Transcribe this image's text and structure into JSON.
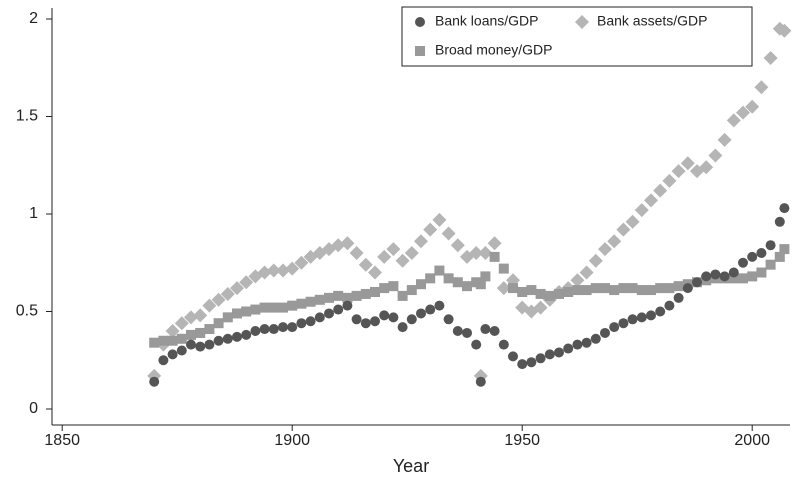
{
  "chart_data": {
    "type": "scatter",
    "xlabel": "Year",
    "x": [
      1870,
      1872,
      1874,
      1876,
      1878,
      1880,
      1882,
      1884,
      1886,
      1888,
      1890,
      1892,
      1894,
      1896,
      1898,
      1900,
      1902,
      1904,
      1906,
      1908,
      1910,
      1912,
      1914,
      1916,
      1918,
      1920,
      1922,
      1924,
      1926,
      1928,
      1930,
      1932,
      1934,
      1936,
      1938,
      1940,
      1941,
      1942,
      1944,
      1946,
      1948,
      1950,
      1952,
      1954,
      1956,
      1958,
      1960,
      1962,
      1964,
      1966,
      1968,
      1970,
      1972,
      1974,
      1976,
      1978,
      1980,
      1982,
      1984,
      1986,
      1988,
      1990,
      1992,
      1994,
      1996,
      1998,
      2000,
      2002,
      2004,
      2006,
      2007
    ],
    "series": [
      {
        "name": "Bank loans/GDP",
        "color": "#555555",
        "marker": "circle",
        "values": [
          0.14,
          0.25,
          0.28,
          0.3,
          0.33,
          0.32,
          0.33,
          0.35,
          0.36,
          0.37,
          0.38,
          0.4,
          0.41,
          0.41,
          0.42,
          0.42,
          0.44,
          0.45,
          0.47,
          0.49,
          0.51,
          0.53,
          0.46,
          0.44,
          0.45,
          0.48,
          0.47,
          0.42,
          0.46,
          0.49,
          0.51,
          0.53,
          0.46,
          0.4,
          0.39,
          0.33,
          0.14,
          0.41,
          0.4,
          0.33,
          0.27,
          0.23,
          0.24,
          0.26,
          0.28,
          0.29,
          0.31,
          0.33,
          0.34,
          0.36,
          0.39,
          0.42,
          0.44,
          0.46,
          0.47,
          0.48,
          0.5,
          0.53,
          0.57,
          0.62,
          0.65,
          0.68,
          0.69,
          0.68,
          0.7,
          0.75,
          0.78,
          0.8,
          0.84,
          0.96,
          1.03
        ]
      },
      {
        "name": "Bank assets/GDP",
        "color": "#b5b5b5",
        "marker": "diamond",
        "values": [
          0.17,
          0.33,
          0.4,
          0.44,
          0.47,
          0.48,
          0.53,
          0.56,
          0.59,
          0.62,
          0.65,
          0.68,
          0.7,
          0.71,
          0.71,
          0.72,
          0.75,
          0.78,
          0.8,
          0.82,
          0.84,
          0.85,
          0.8,
          0.74,
          0.7,
          0.78,
          0.82,
          0.76,
          0.8,
          0.86,
          0.92,
          0.97,
          0.9,
          0.84,
          0.78,
          0.8,
          0.17,
          0.8,
          0.85,
          0.62,
          0.66,
          0.52,
          0.5,
          0.52,
          0.56,
          0.6,
          0.62,
          0.66,
          0.7,
          0.76,
          0.82,
          0.86,
          0.92,
          0.96,
          1.02,
          1.07,
          1.12,
          1.17,
          1.22,
          1.26,
          1.22,
          1.24,
          1.3,
          1.38,
          1.48,
          1.52,
          1.55,
          1.65,
          1.8,
          1.95,
          1.94
        ]
      },
      {
        "name": "Broad money/GDP",
        "color": "#999999",
        "marker": "square",
        "values": [
          0.34,
          0.35,
          0.35,
          0.36,
          0.38,
          0.39,
          0.41,
          0.44,
          0.47,
          0.49,
          0.5,
          0.51,
          0.52,
          0.52,
          0.52,
          0.53,
          0.54,
          0.55,
          0.56,
          0.57,
          0.58,
          0.57,
          0.58,
          0.59,
          0.6,
          0.62,
          0.63,
          0.58,
          0.61,
          0.64,
          0.67,
          0.71,
          0.67,
          0.65,
          0.63,
          0.65,
          0.64,
          0.68,
          0.78,
          0.72,
          0.62,
          0.6,
          0.61,
          0.59,
          0.58,
          0.59,
          0.6,
          0.61,
          0.61,
          0.62,
          0.62,
          0.61,
          0.62,
          0.62,
          0.61,
          0.61,
          0.62,
          0.62,
          0.63,
          0.64,
          0.65,
          0.66,
          0.67,
          0.67,
          0.67,
          0.67,
          0.68,
          0.7,
          0.74,
          0.78,
          0.82
        ]
      }
    ],
    "xlim": [
      1848,
      2008
    ],
    "xticks": [
      1850,
      1900,
      1950,
      2000
    ],
    "ylim": [
      -0.08,
      2.05
    ],
    "yticks": [
      0,
      0.5,
      1,
      1.5,
      2
    ],
    "legend": "top-right"
  }
}
